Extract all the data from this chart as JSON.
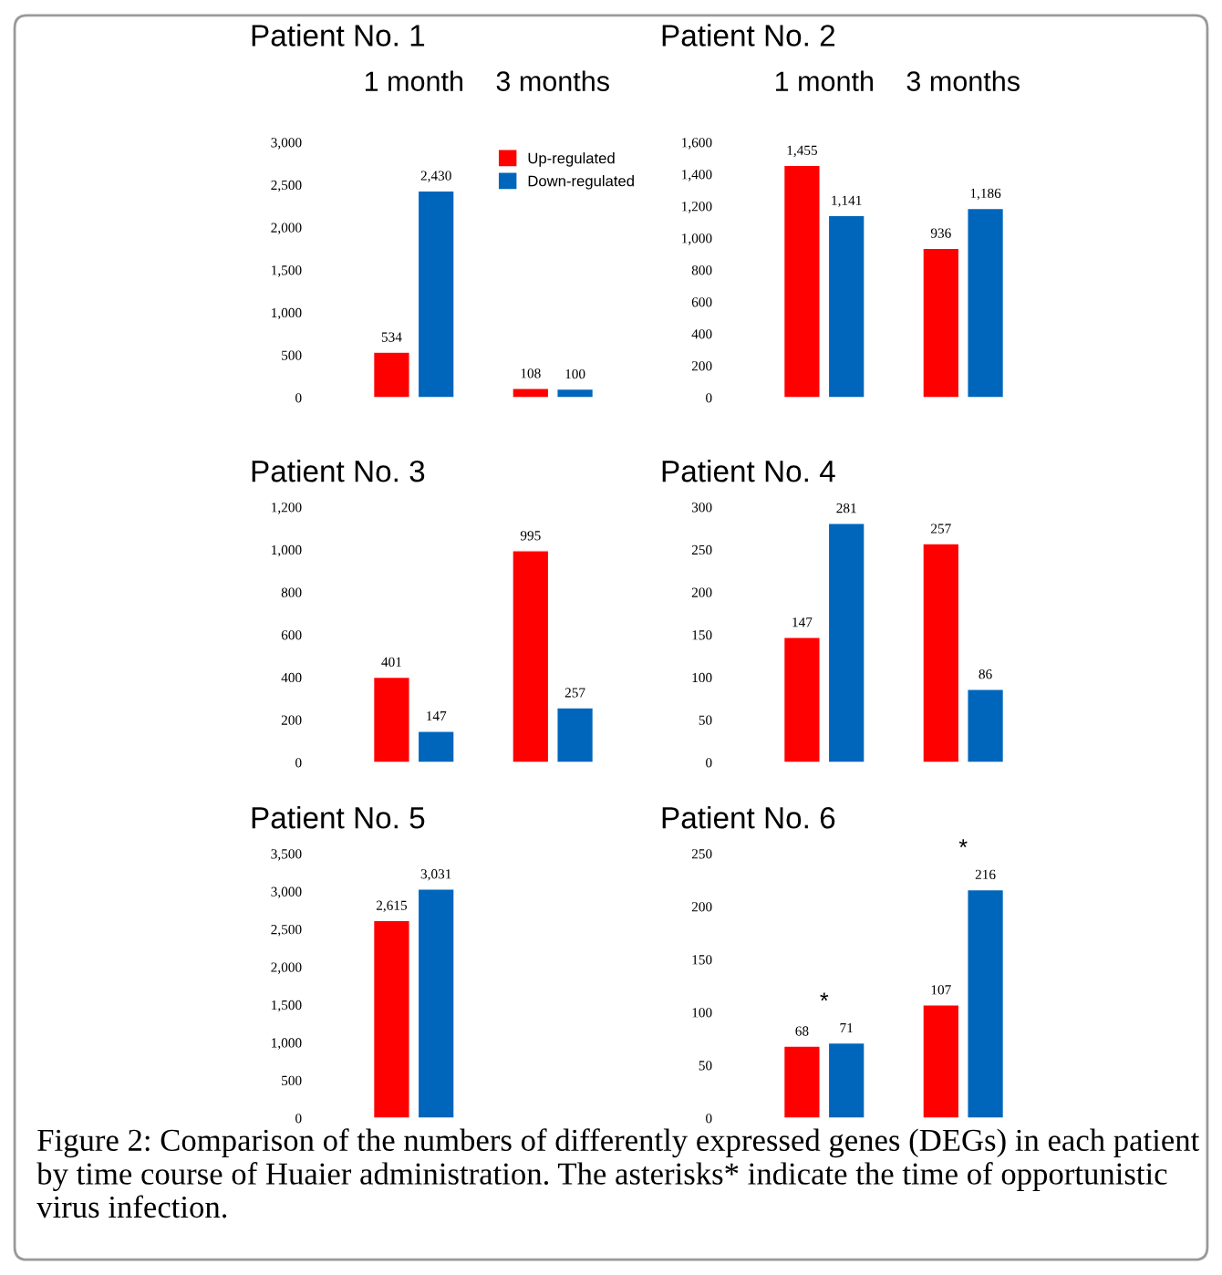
{
  "chart_data": [
    {
      "type": "bar",
      "title": "Patient No. 1",
      "categories": [
        "1 month",
        "3 months"
      ],
      "series": [
        {
          "name": "Up-regulated",
          "color": "#ff0000",
          "values": [
            534,
            108
          ],
          "value_labels": [
            "534",
            "108"
          ]
        },
        {
          "name": "Down-regulated",
          "color": "#0066bb",
          "values": [
            2430,
            100
          ],
          "value_labels": [
            "2,430",
            "100"
          ]
        }
      ],
      "ylim": [
        0,
        3000
      ],
      "yticks": [
        {
          "value": 0,
          "label": "0"
        },
        {
          "value": 500,
          "label": "500"
        },
        {
          "value": 1000,
          "label": "1,000"
        },
        {
          "value": 1500,
          "label": "1,500"
        },
        {
          "value": 2000,
          "label": "2,000"
        },
        {
          "value": 2500,
          "label": "2,500"
        },
        {
          "value": 3000,
          "label": "3,000"
        }
      ],
      "legend": "top right",
      "grid": false
    },
    {
      "type": "bar",
      "title": "Patient No. 2",
      "categories": [
        "1 month",
        "3 months"
      ],
      "series": [
        {
          "color": "#ff0000",
          "values": [
            1455,
            936
          ],
          "value_labels": [
            "1,455",
            "936"
          ]
        },
        {
          "color": "#0066bb",
          "values": [
            1141,
            1186
          ],
          "value_labels": [
            "1,141",
            "1,186"
          ]
        }
      ],
      "ylim": [
        0,
        1600
      ],
      "yticks": [
        {
          "value": 0,
          "label": "0"
        },
        {
          "value": 200,
          "label": "200"
        },
        {
          "value": 400,
          "label": "400"
        },
        {
          "value": 600,
          "label": "600"
        },
        {
          "value": 800,
          "label": "800"
        },
        {
          "value": 1000,
          "label": "1,000"
        },
        {
          "value": 1200,
          "label": "1,200"
        },
        {
          "value": 1400,
          "label": "1,400"
        },
        {
          "value": 1600,
          "label": "1,600"
        }
      ],
      "grid": false
    },
    {
      "type": "bar",
      "title": "Patient No. 3",
      "categories": [
        null,
        null
      ],
      "series": [
        {
          "color": "#ff0000",
          "values": [
            401,
            995
          ],
          "value_labels": [
            "401",
            "995"
          ]
        },
        {
          "color": "#0066bb",
          "values": [
            147,
            257
          ],
          "value_labels": [
            "147",
            "257"
          ]
        }
      ],
      "ylim": [
        0,
        1200
      ],
      "yticks": [
        {
          "value": 0,
          "label": "0"
        },
        {
          "value": 200,
          "label": "200"
        },
        {
          "value": 400,
          "label": "400"
        },
        {
          "value": 600,
          "label": "600"
        },
        {
          "value": 800,
          "label": "800"
        },
        {
          "value": 1000,
          "label": "1,000"
        },
        {
          "value": 1200,
          "label": "1,200"
        }
      ],
      "grid": false
    },
    {
      "type": "bar",
      "title": "Patient No. 4",
      "categories": [
        null,
        null
      ],
      "series": [
        {
          "color": "#ff0000",
          "values": [
            147,
            257
          ],
          "value_labels": [
            "147",
            "257"
          ]
        },
        {
          "color": "#0066bb",
          "values": [
            281,
            86
          ],
          "value_labels": [
            "281",
            "86"
          ]
        }
      ],
      "ylim": [
        0,
        300
      ],
      "yticks": [
        0,
        50,
        100,
        150,
        200,
        250,
        300
      ],
      "grid": false
    },
    {
      "type": "bar",
      "title": "Patient No. 5",
      "categories": [
        null,
        null
      ],
      "series": [
        {
          "color": "#ff0000",
          "values": [
            2615,
            null
          ],
          "value_labels": [
            "2,615",
            null
          ]
        },
        {
          "color": "#0066bb",
          "values": [
            3031,
            null
          ],
          "value_labels": [
            "3,031",
            null
          ]
        }
      ],
      "ylim": [
        0,
        3500
      ],
      "yticks": [
        {
          "value": 0,
          "label": "0"
        },
        {
          "value": 500,
          "label": "500"
        },
        {
          "value": 1000,
          "label": "1,000"
        },
        {
          "value": 1500,
          "label": "1,500"
        },
        {
          "value": 2000,
          "label": "2,000"
        },
        {
          "value": 2500,
          "label": "2,500"
        },
        {
          "value": 3000,
          "label": "3,000"
        },
        {
          "value": 3500,
          "label": "3,500"
        }
      ],
      "grid": false
    },
    {
      "type": "bar",
      "title": "Patient No. 6",
      "categories": [
        null,
        null
      ],
      "series": [
        {
          "color": "#ff0000",
          "values": [
            68,
            107
          ],
          "value_labels": [
            "68",
            "107"
          ]
        },
        {
          "color": "#0066bb",
          "values": [
            71,
            216
          ],
          "value_labels": [
            "71",
            "216"
          ]
        }
      ],
      "ylim": [
        0,
        250
      ],
      "yticks": [
        0,
        50,
        100,
        150,
        200,
        250
      ],
      "grid": false,
      "annotations": [
        "*",
        "*",
        "Figure 2: Comparison of the numbers of differently expressed genes (DEGs) in each patient by time course of Huaier administration. The asterisks* indicate the time of opportunistic virus infection."
      ]
    }
  ]
}
